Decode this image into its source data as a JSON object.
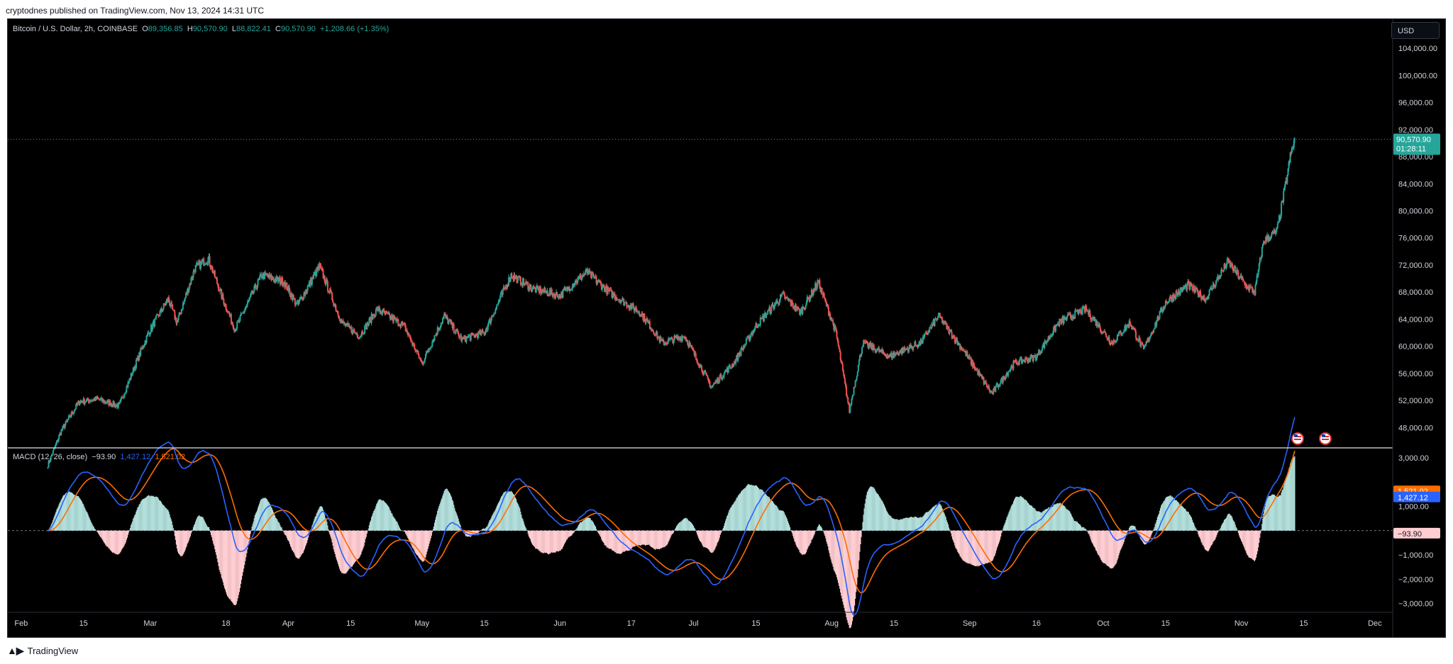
{
  "header": {
    "published": "cryptodnes published on TradingView.com, Nov 13, 2024 14:31 UTC"
  },
  "legend": {
    "symbol": "Bitcoin / U.S. Dollar, 2h, COINBASE",
    "open_label": "O",
    "open": "89,356.85",
    "high_label": "H",
    "high": "90,570.90",
    "low_label": "L",
    "low": "88,822.41",
    "close_label": "C",
    "close": "90,570.90",
    "change": "+1,208.66 (+1.35%)"
  },
  "currency": "USD",
  "price_tag": {
    "value": "90,570.90",
    "countdown": "01:28:11"
  },
  "macd": {
    "title": "MACD (12, 26, close)",
    "hist": "−93.90",
    "macd": "1,427.12",
    "signal": "1,521.02"
  },
  "footer": {
    "brand": "TradingView"
  },
  "colors": {
    "up": "#26a69a",
    "down": "#ef5350",
    "macd_line": "#2962ff",
    "signal_line": "#ff6d00",
    "background": "#000000"
  },
  "icons": [
    "us-flag-event-icon",
    "us-flag-event-icon"
  ],
  "chart_data": [
    {
      "type": "candlestick",
      "title": "Bitcoin / U.S. Dollar, 2h, COINBASE",
      "y_ticks": [
        "48,000.00",
        "52,000.00",
        "56,000.00",
        "60,000.00",
        "64,000.00",
        "68,000.00",
        "72,000.00",
        "76,000.00",
        "80,000.00",
        "84,000.00",
        "88,000.00",
        "92,000.00",
        "96,000.00",
        "100,000.00",
        "104,000.00"
      ],
      "x_ticks": [
        "Feb",
        "15",
        "Mar",
        "18",
        "Apr",
        "15",
        "May",
        "15",
        "Jun",
        "17",
        "Jul",
        "15",
        "Aug",
        "15",
        "Sep",
        "16",
        "Oct",
        "15",
        "Nov",
        "15",
        "Dec"
      ],
      "ylim": [
        45000,
        106000
      ],
      "last_price": 90570.9,
      "price_path": [
        [
          "2024-02-07",
          42500
        ],
        [
          "2024-02-10",
          47500
        ],
        [
          "2024-02-14",
          51800
        ],
        [
          "2024-02-18",
          52200
        ],
        [
          "2024-02-23",
          51200
        ],
        [
          "2024-02-28",
          59500
        ],
        [
          "2024-03-01",
          62500
        ],
        [
          "2024-03-05",
          67000
        ],
        [
          "2024-03-07",
          63500
        ],
        [
          "2024-03-11",
          71500
        ],
        [
          "2024-03-14",
          73000
        ],
        [
          "2024-03-17",
          67500
        ],
        [
          "2024-03-20",
          62500
        ],
        [
          "2024-03-26",
          70500
        ],
        [
          "2024-03-31",
          69500
        ],
        [
          "2024-04-03",
          66000
        ],
        [
          "2024-04-08",
          71800
        ],
        [
          "2024-04-13",
          63500
        ],
        [
          "2024-04-17",
          61500
        ],
        [
          "2024-04-21",
          65500
        ],
        [
          "2024-04-27",
          63000
        ],
        [
          "2024-05-01",
          57500
        ],
        [
          "2024-05-06",
          64500
        ],
        [
          "2024-05-10",
          61000
        ],
        [
          "2024-05-15",
          62000
        ],
        [
          "2024-05-21",
          70500
        ],
        [
          "2024-05-26",
          68500
        ],
        [
          "2024-06-01",
          67500
        ],
        [
          "2024-06-07",
          71000
        ],
        [
          "2024-06-12",
          68000
        ],
        [
          "2024-06-19",
          65000
        ],
        [
          "2024-06-24",
          60500
        ],
        [
          "2024-06-29",
          61500
        ],
        [
          "2024-07-05",
          54000
        ],
        [
          "2024-07-10",
          57500
        ],
        [
          "2024-07-15",
          63000
        ],
        [
          "2024-07-21",
          67500
        ],
        [
          "2024-07-25",
          65000
        ],
        [
          "2024-07-29",
          69500
        ],
        [
          "2024-08-02",
          62000
        ],
        [
          "2024-08-05",
          50500
        ],
        [
          "2024-08-08",
          60500
        ],
        [
          "2024-08-14",
          58500
        ],
        [
          "2024-08-21",
          60500
        ],
        [
          "2024-08-25",
          64500
        ],
        [
          "2024-08-31",
          59000
        ],
        [
          "2024-09-06",
          53000
        ],
        [
          "2024-09-11",
          57500
        ],
        [
          "2024-09-16",
          58500
        ],
        [
          "2024-09-21",
          63500
        ],
        [
          "2024-09-27",
          65500
        ],
        [
          "2024-10-03",
          60500
        ],
        [
          "2024-10-07",
          63500
        ],
        [
          "2024-10-10",
          59500
        ],
        [
          "2024-10-15",
          66500
        ],
        [
          "2024-10-20",
          69000
        ],
        [
          "2024-10-24",
          67000
        ],
        [
          "2024-10-29",
          72500
        ],
        [
          "2024-11-02",
          69000
        ],
        [
          "2024-11-04",
          68000
        ],
        [
          "2024-11-06",
          75500
        ],
        [
          "2024-11-09",
          77000
        ],
        [
          "2024-11-11",
          84000
        ],
        [
          "2024-11-12",
          88000
        ],
        [
          "2024-11-13",
          90570.9
        ]
      ]
    },
    {
      "type": "line",
      "title": "MACD (12, 26, close)",
      "y_ticks": [
        "3,000.00",
        "1,000.00",
        "−1,000.00",
        "−2,000.00",
        "−3,000.00"
      ],
      "ylim": [
        -3300,
        3200
      ],
      "series": [
        {
          "name": "MACD",
          "last": 1427.12
        },
        {
          "name": "Signal",
          "last": 1521.02
        },
        {
          "name": "Histogram",
          "last": -93.9
        }
      ]
    }
  ]
}
